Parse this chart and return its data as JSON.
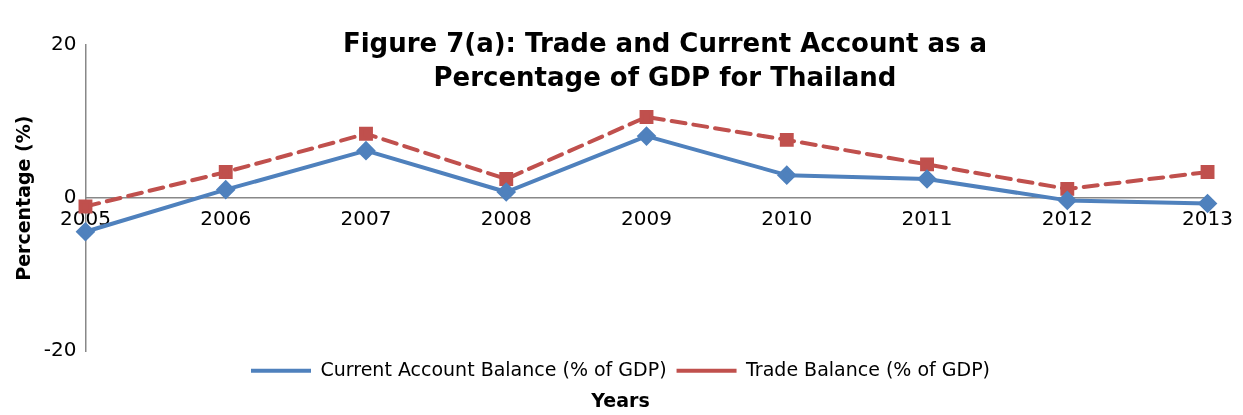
{
  "chart_data": {
    "type": "line",
    "title": "Figure 7(a): Trade and Current Account as a Percentage of GDP for Thailand",
    "xlabel": "Years",
    "ylabel": "Percentage (%)",
    "categories": [
      "2005",
      "2006",
      "2007",
      "2008",
      "2009",
      "2010",
      "2011",
      "2012",
      "2013"
    ],
    "series": [
      {
        "name": "Current Account Balance (% of GDP)",
        "color": "#4f81bd",
        "marker": "diamond",
        "line_style": "solid",
        "values": [
          -4.4,
          1.1,
          6.2,
          0.8,
          8.1,
          3.0,
          2.5,
          -0.3,
          -0.7
        ]
      },
      {
        "name": "Trade Balance (% of GDP)",
        "color": "#c0504d",
        "marker": "square",
        "line_style": "dashed",
        "values": [
          -1.1,
          3.4,
          8.4,
          2.5,
          10.6,
          7.6,
          4.4,
          1.2,
          3.4
        ]
      }
    ],
    "ylim": [
      -20,
      20
    ],
    "yticks": [
      -20,
      0,
      20
    ],
    "grid": false,
    "legend": "bottom"
  }
}
